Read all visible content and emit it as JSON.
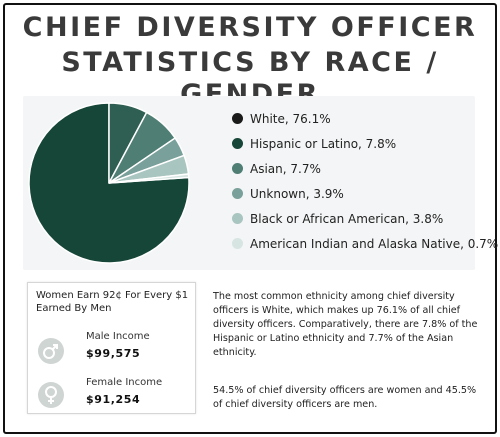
{
  "title_line1": "CHIEF DIVERSITY OFFICER",
  "title_line2": "STATISTICS BY RACE  / GENDER",
  "chart_data": {
    "type": "pie",
    "title": "CHIEF DIVERSITY OFFICER STATISTICS BY RACE / GENDER",
    "slices": [
      {
        "label": "White, 76.1%",
        "value": 76.1,
        "color": "#164638"
      },
      {
        "label": "Hispanic or Latino, 7.8%",
        "value": 7.8,
        "color": "#2f5e52"
      },
      {
        "label": "Asian, 7.7%",
        "value": 7.7,
        "color": "#4f7e74"
      },
      {
        "label": "Unknown, 3.9%",
        "value": 3.9,
        "color": "#79a09a"
      },
      {
        "label": "Black or African American, 3.8%",
        "value": 3.8,
        "color": "#a9c5c0"
      },
      {
        "label": "American Indian and Alaska Native, 0.7%",
        "value": 0.7,
        "color": "#d7e5e2"
      }
    ],
    "legend_position": "right"
  },
  "legend_colors": {
    "white": "#1a1a1a",
    "hispanic": "#164638",
    "asian": "#4f7e74",
    "unknown": "#79a09a",
    "black": "#a9c5c0",
    "native": "#d7e5e2"
  },
  "income": {
    "heading": "Women Earn 92¢ For Every $1 Earned By Men",
    "male_label": "Male Income",
    "male_value": "$99,575",
    "male_icon": "male-symbol-icon",
    "female_label": "Female Income",
    "female_value": "$91,254",
    "female_icon": "female-symbol-icon"
  },
  "description_1": "The most common ethnicity among chief diversity officers is White, which makes up 76.1% of all chief diversity officers. Comparatively, there are 7.8% of the Hispanic or Latino ethnicity and 7.7% of the Asian ethnicity.",
  "description_2": "54.5% of chief diversity officers are women and 45.5% of chief diversity officers are men."
}
